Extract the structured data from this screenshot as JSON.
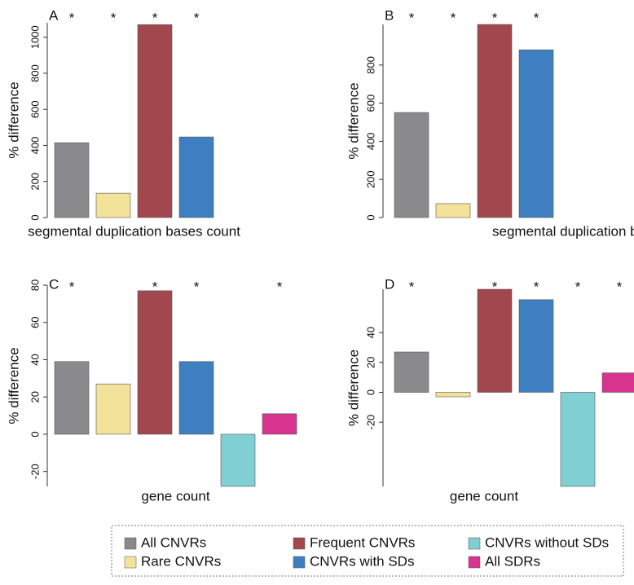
{
  "legend": [
    {
      "name": "All CNVRs",
      "color": "#8a8a8c"
    },
    {
      "name": "Rare CNVRs",
      "color": "#f3e29a"
    },
    {
      "name": "Frequent CNVRs",
      "color": "#a3474f"
    },
    {
      "name": "CNVRs with SDs",
      "color": "#3e7fc1"
    },
    {
      "name": "CNVRs without SDs",
      "color": "#7fcfd3"
    },
    {
      "name": "All SDRs",
      "color": "#d8348f"
    }
  ],
  "chart_data": [
    {
      "type": "bar",
      "label": "A",
      "xlabel": "segmental duplication bases count",
      "ylabel": "% difference",
      "values": [
        415,
        135,
        1070,
        447
      ],
      "annotations": [
        "*",
        "*",
        "*",
        "*"
      ],
      "ylim": [
        0,
        1080
      ],
      "yticks": [
        0,
        200,
        400,
        600,
        800,
        1000
      ]
    },
    {
      "type": "bar",
      "label": "B",
      "xlabel": "segmental duplication bases count",
      "ylabel": "% difference",
      "values": [
        551,
        73,
        1013,
        880
      ],
      "annotations": [
        "*",
        "*",
        "*",
        "*"
      ],
      "ylim": [
        0,
        1013
      ],
      "yticks": [
        0,
        200,
        400,
        600,
        800
      ]
    },
    {
      "type": "bar",
      "label": "C",
      "xlabel": "gene count",
      "ylabel": "% difference",
      "values": [
        39,
        27,
        77,
        39,
        -28,
        11
      ],
      "annotations": [
        "*",
        null,
        "*",
        "*",
        null,
        "*"
      ],
      "ylim": [
        -28,
        80
      ],
      "yticks": [
        -20,
        0,
        20,
        40,
        60,
        80
      ]
    },
    {
      "type": "bar",
      "label": "D",
      "xlabel": "gene count",
      "ylabel": "% difference",
      "values": [
        27,
        -3,
        69,
        62,
        -63,
        13
      ],
      "annotations": [
        "*",
        null,
        "*",
        "*",
        "*",
        "*"
      ],
      "ylim": [
        -63,
        69
      ],
      "yticks": [
        -20,
        0,
        20,
        40
      ]
    }
  ]
}
